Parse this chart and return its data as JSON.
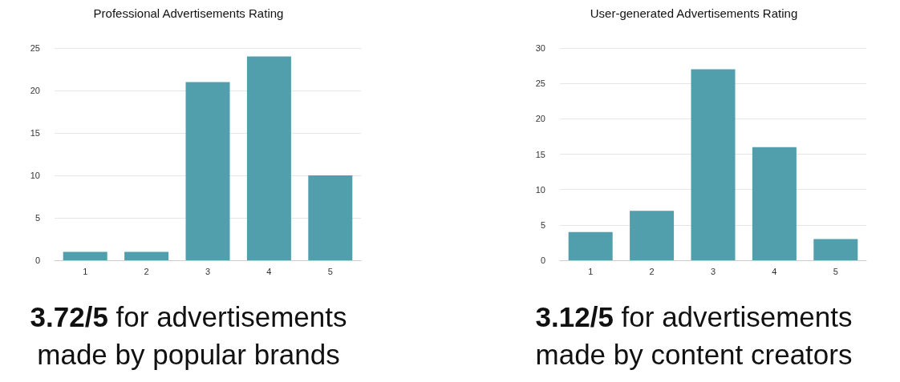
{
  "chart_data": [
    {
      "type": "bar",
      "title": "Professional Advertisements Rating",
      "categories": [
        "1",
        "2",
        "3",
        "4",
        "5"
      ],
      "values": [
        1,
        1,
        21,
        24,
        10
      ],
      "color": "#519fac",
      "ylim": [
        0,
        25
      ],
      "yticks": [
        0,
        5,
        10,
        15,
        20,
        25
      ],
      "grid": "y",
      "annotations": [
        "3.72/5 for advertisements made by popular brands"
      ]
    },
    {
      "type": "bar",
      "title": "User-generated Advertisements Rating",
      "categories": [
        "1",
        "2",
        "3",
        "4",
        "5"
      ],
      "values": [
        4,
        7,
        27,
        16,
        3
      ],
      "color": "#519fac",
      "ylim": [
        0,
        30
      ],
      "yticks": [
        0,
        5,
        10,
        15,
        20,
        25,
        30
      ],
      "grid": "y",
      "annotations": [
        "3.12/5 for advertisements made by content creators"
      ]
    }
  ]
}
